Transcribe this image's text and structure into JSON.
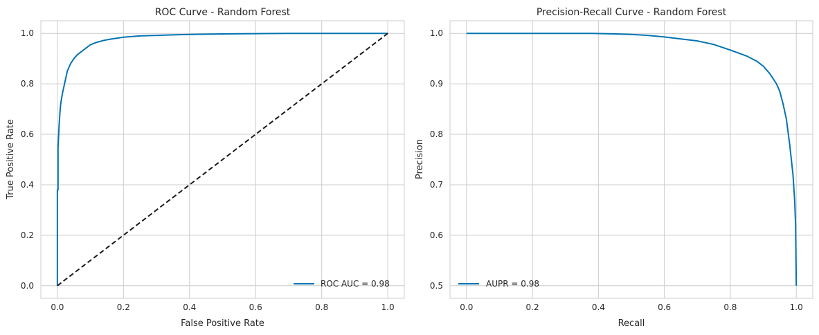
{
  "colors": {
    "curve": "#0173b2",
    "reference": "#1a1a1a",
    "grid": "#cccccc"
  },
  "chart_data": [
    {
      "type": "line",
      "title": "ROC Curve - Random Forest",
      "xlabel": "False Positive Rate",
      "ylabel": "True Positive Rate",
      "xlim": [
        -0.05,
        1.05
      ],
      "ylim": [
        -0.05,
        1.05
      ],
      "xticks": [
        "0.0",
        "0.2",
        "0.4",
        "0.6",
        "0.8",
        "1.0"
      ],
      "yticks": [
        "0.0",
        "0.2",
        "0.4",
        "0.6",
        "0.8",
        "1.0"
      ],
      "grid": true,
      "legend": {
        "location": "lower right",
        "entries": [
          "ROC AUC = 0.98"
        ]
      },
      "series": [
        {
          "name": "ROC AUC = 0.98",
          "style": "solid",
          "color": "#0173b2",
          "x": [
            0,
            0,
            0.002,
            0.002,
            0.004,
            0.005,
            0.008,
            0.01,
            0.015,
            0.02,
            0.025,
            0.03,
            0.04,
            0.05,
            0.06,
            0.08,
            0.1,
            0.12,
            0.14,
            0.16,
            0.2,
            0.25,
            0.3,
            0.35,
            0.4,
            0.5,
            0.6,
            0.7,
            0.8,
            0.9,
            1.0
          ],
          "y": [
            0,
            0.38,
            0.38,
            0.55,
            0.6,
            0.63,
            0.69,
            0.72,
            0.76,
            0.79,
            0.82,
            0.85,
            0.88,
            0.9,
            0.915,
            0.935,
            0.955,
            0.965,
            0.972,
            0.977,
            0.985,
            0.99,
            0.992,
            0.994,
            0.996,
            0.998,
            0.999,
            1.0,
            1.0,
            1.0,
            1.0
          ]
        },
        {
          "name": "",
          "style": "dashed",
          "color": "#1a1a1a",
          "x": [
            0,
            1
          ],
          "y": [
            0,
            1
          ]
        }
      ]
    },
    {
      "type": "line",
      "title": "Precision-Recall Curve - Random Forest",
      "xlabel": "Recall",
      "ylabel": "Precision",
      "xlim": [
        -0.05,
        1.05
      ],
      "ylim": [
        0.475,
        1.025
      ],
      "xticks": [
        "0.0",
        "0.2",
        "0.4",
        "0.6",
        "0.8",
        "1.0"
      ],
      "yticks": [
        "0.5",
        "0.6",
        "0.7",
        "0.8",
        "0.9",
        "1.0"
      ],
      "grid": true,
      "legend": {
        "location": "lower left",
        "entries": [
          "AUPR = 0.98"
        ]
      },
      "series": [
        {
          "name": "AUPR = 0.98",
          "style": "solid",
          "color": "#0173b2",
          "x": [
            0,
            0.1,
            0.2,
            0.3,
            0.38,
            0.45,
            0.5,
            0.55,
            0.6,
            0.65,
            0.7,
            0.75,
            0.8,
            0.85,
            0.88,
            0.9,
            0.92,
            0.94,
            0.95,
            0.96,
            0.97,
            0.98,
            0.99,
            0.995,
            0.998,
            1.0,
            1.0
          ],
          "y": [
            1.0,
            1.0,
            1.0,
            1.0,
            1.0,
            0.999,
            0.998,
            0.996,
            0.993,
            0.989,
            0.985,
            0.978,
            0.967,
            0.955,
            0.945,
            0.935,
            0.92,
            0.9,
            0.885,
            0.86,
            0.83,
            0.78,
            0.72,
            0.67,
            0.62,
            0.5,
            0.5
          ]
        }
      ]
    }
  ]
}
